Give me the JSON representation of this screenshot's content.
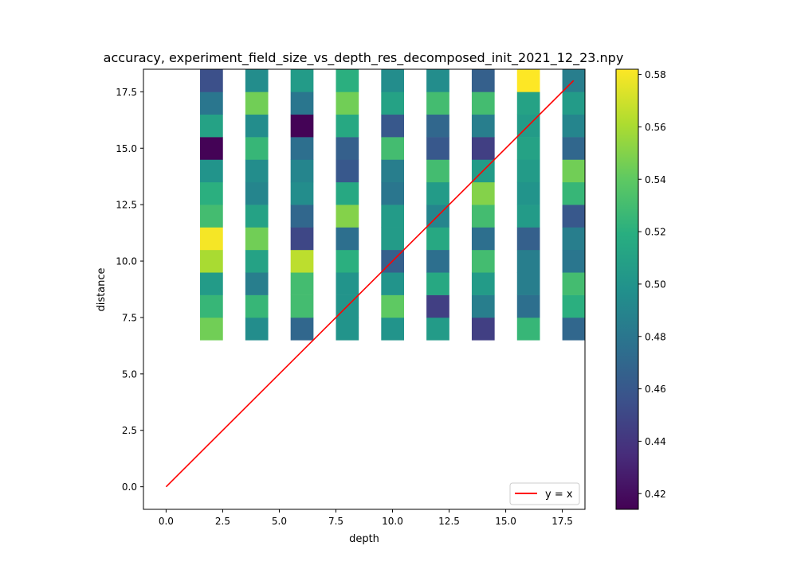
{
  "chart_data": {
    "type": "heatmap",
    "title": "accuracy, experiment_field_size_vs_depth_res_decomposed_init_2021_12_23.npy",
    "xlabel": "depth",
    "ylabel": "distance",
    "xlim": [
      -1,
      18.5
    ],
    "ylim": [
      -1,
      18.5
    ],
    "x_ticks": [
      "0.0",
      "2.5",
      "5.0",
      "7.5",
      "10.0",
      "12.5",
      "15.0",
      "17.5"
    ],
    "y_ticks": [
      "0.0",
      "2.5",
      "5.0",
      "7.5",
      "10.0",
      "12.5",
      "15.0",
      "17.5"
    ],
    "depths": [
      2,
      4,
      6,
      8,
      10,
      12,
      14,
      16,
      18
    ],
    "distances": [
      7,
      8,
      9,
      10,
      11,
      12,
      13,
      14,
      15,
      16,
      17,
      18
    ],
    "values": [
      [
        0.545,
        0.525,
        0.505,
        0.56,
        0.58,
        0.53,
        0.52,
        0.5,
        0.415,
        0.51,
        0.48,
        0.455
      ],
      [
        0.495,
        0.525,
        0.485,
        0.51,
        0.545,
        0.51,
        0.49,
        0.495,
        0.525,
        0.495,
        0.545,
        0.495
      ],
      [
        0.47,
        0.53,
        0.53,
        0.565,
        0.45,
        0.47,
        0.495,
        0.49,
        0.475,
        0.415,
        0.48,
        0.505
      ],
      [
        0.5,
        0.5,
        0.5,
        0.52,
        0.475,
        0.55,
        0.515,
        0.46,
        0.465,
        0.515,
        0.545,
        0.52
      ],
      [
        0.5,
        0.54,
        0.5,
        0.465,
        0.505,
        0.505,
        0.48,
        0.485,
        0.53,
        0.46,
        0.51,
        0.495
      ],
      [
        0.505,
        0.445,
        0.515,
        0.475,
        0.515,
        0.49,
        0.505,
        0.53,
        0.46,
        0.47,
        0.53,
        0.495
      ],
      [
        0.445,
        0.485,
        0.505,
        0.53,
        0.475,
        0.53,
        0.55,
        0.505,
        0.445,
        0.485,
        0.53,
        0.465
      ],
      [
        0.525,
        0.475,
        0.485,
        0.485,
        0.465,
        0.505,
        0.5,
        0.505,
        0.51,
        0.505,
        0.51,
        0.582
      ],
      [
        0.47,
        0.52,
        0.53,
        0.48,
        0.485,
        0.46,
        0.525,
        0.545,
        0.47,
        0.49,
        0.505,
        0.485
      ]
    ],
    "colorbar": {
      "min": 0.414,
      "max": 0.582,
      "ticks": [
        "0.42",
        "0.44",
        "0.46",
        "0.48",
        "0.50",
        "0.52",
        "0.54",
        "0.56",
        "0.58"
      ]
    },
    "series": [
      {
        "name": "y = x",
        "x": [
          0,
          18
        ],
        "y": [
          0,
          18
        ],
        "color": "#ff0000"
      }
    ],
    "legend_position": "lower-right",
    "colormap": "viridis"
  }
}
